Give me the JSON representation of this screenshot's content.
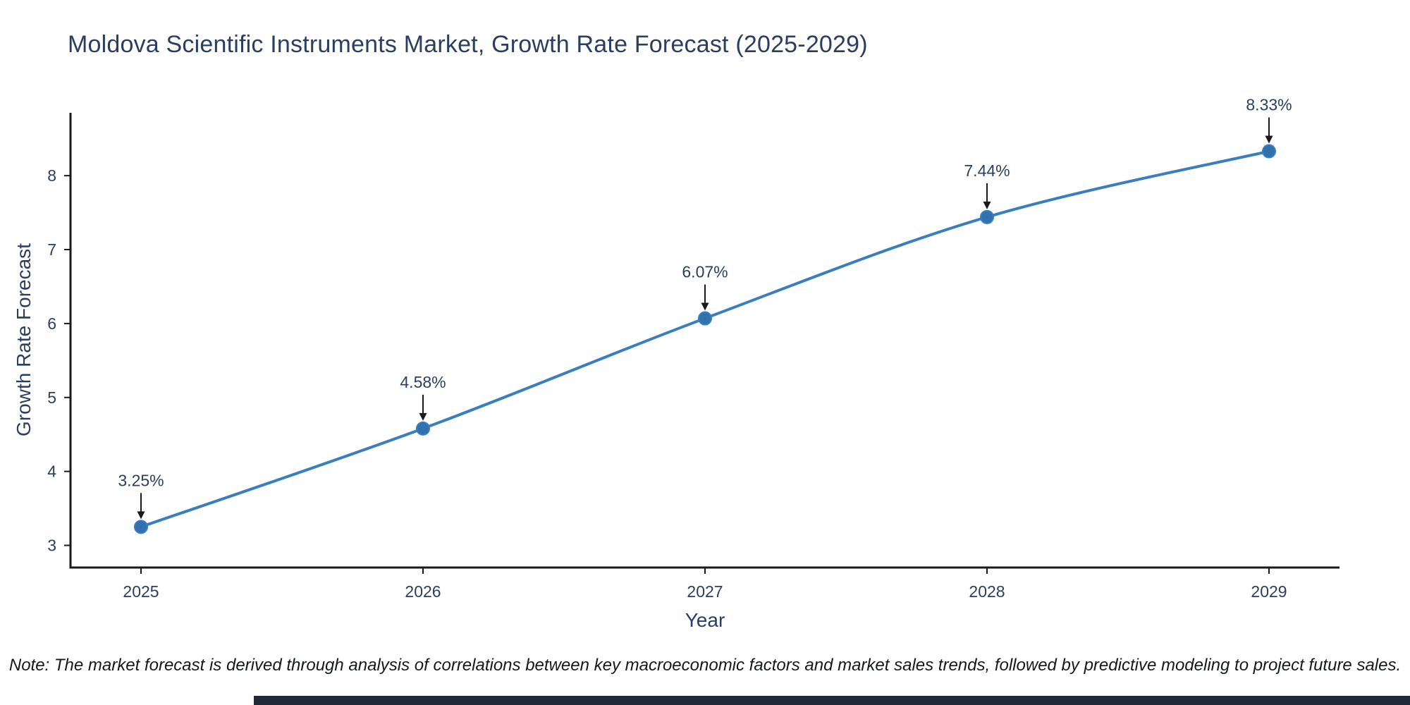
{
  "chart_data": {
    "type": "line",
    "title": "Moldova Scientific Instruments Market, Growth Rate Forecast (2025-2029)",
    "xlabel": "Year",
    "ylabel": "Growth Rate Forecast",
    "note": "Note: The market forecast is derived through analysis of correlations between key macroeconomic factors and market sales trends, followed by predictive modeling to project future sales.",
    "x": [
      "2025",
      "2026",
      "2027",
      "2028",
      "2029"
    ],
    "values": [
      3.25,
      4.58,
      6.07,
      7.44,
      8.33
    ],
    "labels": [
      "3.25%",
      "4.58%",
      "6.07%",
      "7.44%",
      "8.33%"
    ],
    "ylim": [
      2.7,
      8.85
    ],
    "yticks": [
      3,
      4,
      5,
      6,
      7,
      8
    ],
    "grid": false,
    "legend": "none",
    "colors": {
      "line": "#3a7ebf",
      "marker": "#2f72ad",
      "text": "#2a3f5f",
      "axis": "#1a1a1a",
      "arrow": "#1a1a1a",
      "note_text": "#15181c",
      "bottom_bar": "#1f2937",
      "background": "#ffffff"
    }
  }
}
